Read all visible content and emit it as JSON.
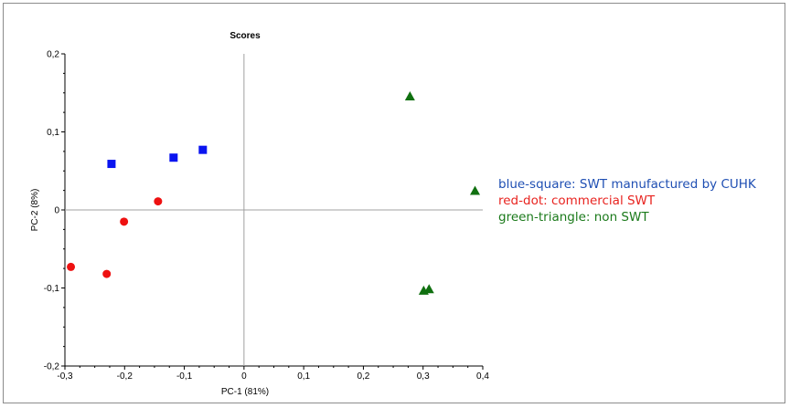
{
  "chart_data": {
    "type": "scatter",
    "title": "Scores",
    "xlabel": "PC-1 (81%)",
    "ylabel": "PC-2 (8%)",
    "xlim": [
      -0.3,
      0.4
    ],
    "ylim": [
      -0.2,
      0.2
    ],
    "x_ticks": [
      "-0,3",
      "-0,2",
      "-0,1",
      "0",
      "0,1",
      "0,2",
      "0,3",
      "0,4"
    ],
    "y_ticks": [
      "0,2",
      "0,1",
      "0",
      "-0,1",
      "-0,2"
    ],
    "x_tick_values": [
      -0.3,
      -0.2,
      -0.1,
      0,
      0.1,
      0.2,
      0.3,
      0.4
    ],
    "y_tick_values": [
      0.2,
      0.1,
      0,
      -0.1,
      -0.2
    ],
    "grid": false,
    "reference_lines": [
      "x=0",
      "y=0"
    ],
    "legend_position": "right",
    "series": [
      {
        "name": "blue-square: SWT manufactured by CUHK",
        "marker": "square",
        "color": "#0a14f0",
        "points": [
          [
            -0.222,
            0.059
          ],
          [
            -0.118,
            0.067
          ],
          [
            -0.069,
            0.077
          ]
        ]
      },
      {
        "name": "red-dot: commercial SWT",
        "marker": "circle",
        "color": "#ee1111",
        "points": [
          [
            -0.144,
            0.011
          ],
          [
            -0.201,
            -0.015
          ],
          [
            -0.29,
            -0.073
          ],
          [
            -0.23,
            -0.082
          ]
        ]
      },
      {
        "name": "green-triangle: non SWT",
        "marker": "triangle",
        "color": "#107010",
        "points": [
          [
            0.278,
            0.145
          ],
          [
            0.387,
            0.024
          ],
          [
            0.301,
            -0.104
          ],
          [
            0.31,
            -0.102
          ]
        ]
      }
    ]
  },
  "legend": {
    "blue": "blue-square: SWT manufactured by CUHK",
    "red": "red-dot: commercial SWT",
    "green": "green-triangle: non SWT",
    "blue_color": "#1f4fb3",
    "red_color": "#e8231f",
    "green_color": "#1b7a1b"
  }
}
